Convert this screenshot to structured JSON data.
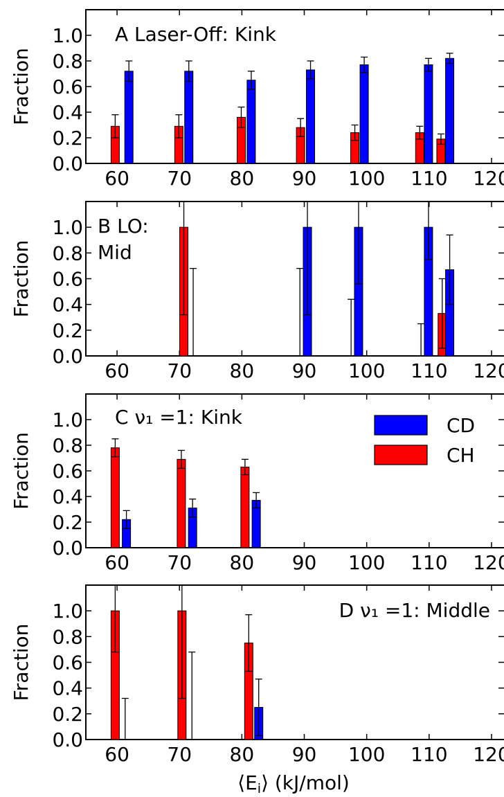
{
  "figure": {
    "xlabel": "⟨E_i⟩ (kJ/mol)"
  },
  "legend": {
    "entries": [
      {
        "name": "CD",
        "color": "#0000ff"
      },
      {
        "name": "CH",
        "color": "#ff0000"
      }
    ]
  },
  "chart_data": [
    {
      "type": "bar",
      "panel": "A",
      "annotation": "A Laser-Off: Kink",
      "ylabel": "Fraction",
      "xlim": [
        55,
        122
      ],
      "ylim": [
        0,
        1.2
      ],
      "yticks": [
        "0.0",
        "0.2",
        "0.4",
        "0.6",
        "0.8",
        "1.0"
      ],
      "xticks": [
        "60",
        "70",
        "80",
        "90",
        "100",
        "110",
        "120"
      ],
      "series": [
        {
          "name": "CH",
          "x": [
            59.7,
            69.9,
            79.9,
            89.4,
            98.1,
            108.5,
            111.9
          ],
          "values": [
            0.29,
            0.29,
            0.36,
            0.28,
            0.24,
            0.24,
            0.19
          ],
          "err": [
            0.09,
            0.09,
            0.08,
            0.07,
            0.06,
            0.05,
            0.04
          ]
        },
        {
          "name": "CD",
          "x": [
            61.9,
            71.5,
            81.5,
            91.0,
            99.6,
            109.9,
            113.3
          ],
          "values": [
            0.72,
            0.72,
            0.65,
            0.73,
            0.77,
            0.77,
            0.82
          ],
          "err": [
            0.08,
            0.08,
            0.07,
            0.07,
            0.06,
            0.05,
            0.04
          ]
        }
      ]
    },
    {
      "type": "bar",
      "panel": "B",
      "annotation": "B LO:\nMid",
      "ylabel": "Fraction",
      "xlim": [
        55,
        122
      ],
      "ylim": [
        0,
        1.2
      ],
      "yticks": [
        "0.0",
        "0.2",
        "0.4",
        "0.6",
        "0.8",
        "1.0"
      ],
      "xticks": [
        "60",
        "70",
        "80",
        "90",
        "100",
        "110",
        "120"
      ],
      "series": [
        {
          "name": "CH",
          "x": [
            70.7,
            89.3,
            97.5,
            108.7,
            112.1
          ],
          "values": [
            1.0,
            0.0,
            0.0,
            0.0,
            0.33
          ],
          "err": [
            0.68,
            0.68,
            0.44,
            0.25,
            0.27
          ]
        },
        {
          "name": "CD",
          "x": [
            72.2,
            90.5,
            98.7,
            109.9,
            113.3
          ],
          "values": [
            0.0,
            1.0,
            1.0,
            1.0,
            0.67
          ],
          "err": [
            0.68,
            0.68,
            0.44,
            0.25,
            0.27
          ]
        }
      ]
    },
    {
      "type": "bar",
      "panel": "C",
      "annotation": "C ν₁ =1: Kink",
      "ylabel": "Fraction",
      "xlim": [
        55,
        122
      ],
      "ylim": [
        0,
        1.2
      ],
      "yticks": [
        "0.0",
        "0.2",
        "0.4",
        "0.6",
        "0.8",
        "1.0"
      ],
      "xticks": [
        "60",
        "70",
        "80",
        "90",
        "100",
        "110",
        "120"
      ],
      "legend_loc": "upper right",
      "series": [
        {
          "name": "CH",
          "x": [
            59.7,
            70.3,
            80.5
          ],
          "values": [
            0.78,
            0.69,
            0.63
          ],
          "err": [
            0.07,
            0.07,
            0.06
          ]
        },
        {
          "name": "CD",
          "x": [
            61.5,
            72.1,
            82.3
          ],
          "values": [
            0.22,
            0.31,
            0.37
          ],
          "err": [
            0.07,
            0.07,
            0.06
          ]
        }
      ]
    },
    {
      "type": "bar",
      "panel": "D",
      "annotation": "D ν₁ =1: Middle",
      "ylabel": "Fraction",
      "xlabel": "⟨E_i⟩ (kJ/mol)",
      "xlim": [
        55,
        122
      ],
      "ylim": [
        0,
        1.2
      ],
      "yticks": [
        "0.0",
        "0.2",
        "0.4",
        "0.6",
        "0.8",
        "1.0"
      ],
      "xticks": [
        "60",
        "70",
        "80",
        "90",
        "100",
        "110",
        "120"
      ],
      "series": [
        {
          "name": "CH",
          "x": [
            59.7,
            70.4,
            81.1
          ],
          "values": [
            1.0,
            1.0,
            0.75
          ],
          "err": [
            0.32,
            0.68,
            0.22
          ]
        },
        {
          "name": "CD",
          "x": [
            61.3,
            72.0,
            82.7
          ],
          "values": [
            0.0,
            0.0,
            0.25
          ],
          "err": [
            0.32,
            0.68,
            0.22
          ]
        }
      ]
    }
  ]
}
